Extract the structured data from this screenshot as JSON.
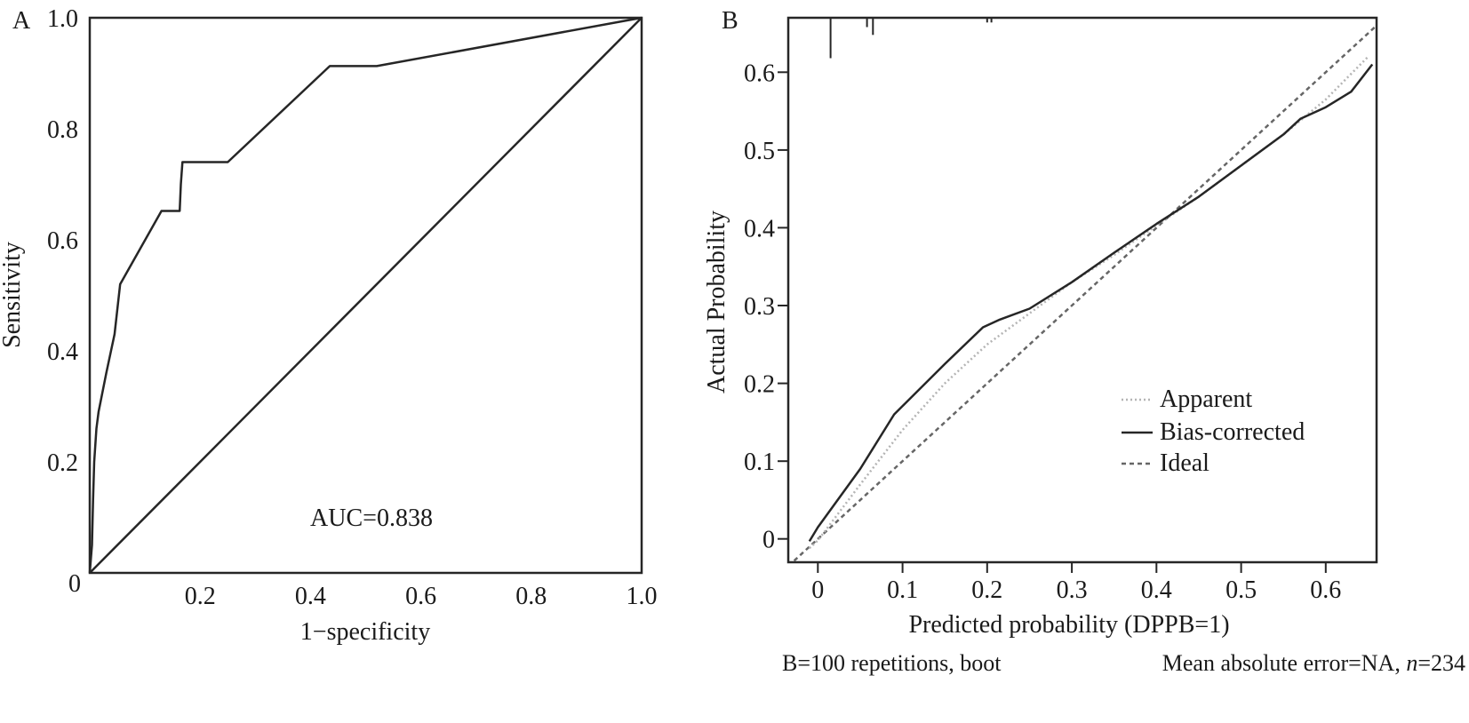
{
  "chart_data": [
    {
      "panel_label": "A",
      "type": "line",
      "xlabel": "1−specificity",
      "ylabel": "Sensitivity",
      "xlim": [
        0,
        1.0
      ],
      "ylim": [
        0,
        1.0
      ],
      "x_ticks": [
        {
          "value": 0,
          "label": "0"
        },
        {
          "value": 0.2,
          "label": "0.2"
        },
        {
          "value": 0.4,
          "label": "0.4"
        },
        {
          "value": 0.6,
          "label": "0.6"
        },
        {
          "value": 0.8,
          "label": "0.8"
        },
        {
          "value": 1.0,
          "label": "1.0"
        }
      ],
      "y_ticks": [
        {
          "value": 0.2,
          "label": "0.2"
        },
        {
          "value": 0.4,
          "label": "0.4"
        },
        {
          "value": 0.6,
          "label": "0.6"
        },
        {
          "value": 0.8,
          "label": "0.8"
        },
        {
          "value": 1.0,
          "label": "1.0"
        }
      ],
      "annotation": "AUC=0.838",
      "series": [
        {
          "style": "solid",
          "color": "#262626",
          "x": [
            0,
            0.004,
            0.006,
            0.008,
            0.012,
            0.016,
            0.03,
            0.045,
            0.055,
            0.13,
            0.163,
            0.165,
            0.168,
            0.172,
            0.25,
            0.435,
            0.52,
            1.0
          ],
          "y": [
            0,
            0.05,
            0.13,
            0.2,
            0.26,
            0.29,
            0.36,
            0.43,
            0.52,
            0.652,
            0.652,
            0.7,
            0.74,
            0.74,
            0.74,
            0.913,
            0.913,
            1.0
          ]
        },
        {
          "style": "solid",
          "color": "#262626",
          "x": [
            0,
            1.0
          ],
          "y": [
            0,
            1.0
          ]
        }
      ]
    },
    {
      "panel_label": "B",
      "type": "line",
      "xlabel": "Predicted probability (DPPB=1)",
      "ylabel": "Actual Probability",
      "xlim": [
        -0.035,
        0.66
      ],
      "ylim": [
        -0.03,
        0.67
      ],
      "x_ticks": [
        {
          "value": 0,
          "label": "0"
        },
        {
          "value": 0.1,
          "label": "0.1"
        },
        {
          "value": 0.2,
          "label": "0.2"
        },
        {
          "value": 0.3,
          "label": "0.3"
        },
        {
          "value": 0.4,
          "label": "0.4"
        },
        {
          "value": 0.5,
          "label": "0.5"
        },
        {
          "value": 0.6,
          "label": "0.6"
        }
      ],
      "y_ticks": [
        {
          "value": 0,
          "label": "0"
        },
        {
          "value": 0.1,
          "label": "0.1"
        },
        {
          "value": 0.2,
          "label": "0.2"
        },
        {
          "value": 0.3,
          "label": "0.3"
        },
        {
          "value": 0.4,
          "label": "0.4"
        },
        {
          "value": 0.5,
          "label": "0.5"
        },
        {
          "value": 0.6,
          "label": "0.6"
        }
      ],
      "rug": [
        {
          "x": 0.015,
          "len": 0.052
        },
        {
          "x": 0.058,
          "len": 0.012
        },
        {
          "x": 0.065,
          "len": 0.022
        },
        {
          "x": 0.2,
          "len": 0.006
        },
        {
          "x": 0.205,
          "len": 0.006
        }
      ],
      "series": [
        {
          "name": "Apparent",
          "style": "dotted",
          "color": "#b4b4b4",
          "x": [
            -0.01,
            0.0,
            0.05,
            0.1,
            0.15,
            0.2,
            0.25,
            0.3,
            0.35,
            0.4,
            0.45,
            0.5,
            0.55,
            0.6,
            0.65
          ],
          "y": [
            -0.012,
            -0.002,
            0.07,
            0.14,
            0.2,
            0.25,
            0.29,
            0.33,
            0.365,
            0.403,
            0.44,
            0.48,
            0.52,
            0.565,
            0.62
          ]
        },
        {
          "name": "Bias-corrected",
          "style": "solid",
          "color": "#262626",
          "x": [
            -0.01,
            0.0,
            0.05,
            0.09,
            0.15,
            0.195,
            0.215,
            0.25,
            0.3,
            0.35,
            0.4,
            0.45,
            0.5,
            0.55,
            0.57,
            0.6,
            0.63,
            0.655
          ],
          "y": [
            -0.003,
            0.015,
            0.09,
            0.16,
            0.225,
            0.272,
            0.282,
            0.296,
            0.33,
            0.368,
            0.405,
            0.44,
            0.48,
            0.52,
            0.54,
            0.555,
            0.575,
            0.61
          ]
        },
        {
          "name": "Ideal",
          "style": "dashed",
          "color": "#666666",
          "x": [
            -0.035,
            0.67
          ],
          "y": [
            -0.035,
            0.67
          ]
        }
      ],
      "legend_position": "bottom-right",
      "footer_left": "B=100 repetitions, boot",
      "footer_right_prefix": "Mean absolute error=NA, ",
      "footer_right_italic": "n",
      "footer_right_suffix": "=234"
    }
  ]
}
